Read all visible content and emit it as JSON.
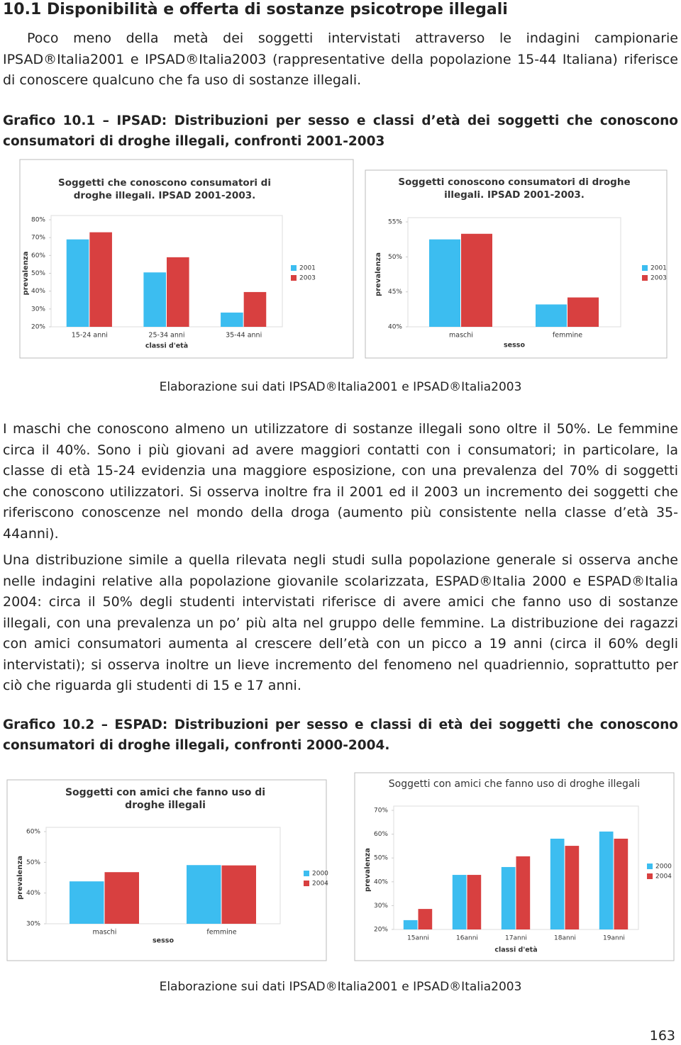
{
  "section_title": "10.1 Disponibilità e offerta di sostanze psicotrope illegali",
  "intro": "Poco meno della metà dei soggetti intervistati attraverso le indagini campionarie IPSAD®Italia2001 e IPSAD®Italia2003 (rappresentative della popolazione 15-44 Italiana) riferisce di conoscere qualcuno che fa uso di sostanze illegali.",
  "figure1_caption": "Grafico 10.1 – IPSAD: Distribuzioni per sesso e classi d’età dei soggetti che conoscono consumatori di droghe illegali, confronti 2001-2003",
  "figure1_source": "Elaborazione sui dati IPSAD®Italia2001 e IPSAD®Italia2003",
  "paragraphs": [
    "I maschi che conoscono almeno un utilizzatore di sostanze illegali sono oltre il 50%. Le femmine circa il 40%. Sono i più giovani ad avere maggiori contatti con i consumatori; in particolare, la classe di età 15-24 evidenzia una maggiore esposizione, con una prevalenza del 70% di soggetti che conoscono utilizzatori. Si osserva inoltre fra il 2001 ed il 2003 un incremento dei soggetti che riferiscono conoscenze nel mondo della droga (aumento più consistente nella classe d’età 35-44anni).",
    "Una distribuzione simile a quella rilevata negli studi sulla popolazione generale si osserva anche nelle indagini relative alla popolazione giovanile scolarizzata, ESPAD®Italia 2000 e ESPAD®Italia 2004: circa il 50% degli studenti intervistati riferisce di avere amici che fanno uso di sostanze illegali, con una prevalenza un po’ più alta nel gruppo delle femmine. La distribuzione dei ragazzi con amici consumatori aumenta al crescere dell’età con un picco a 19 anni (circa il 60% degli intervistati); si osserva inoltre un lieve incremento del fenomeno nel quadriennio, soprattutto per ciò che riguarda gli studenti di 15 e 17 anni."
  ],
  "figure2_caption": "Grafico 10.2 – ESPAD: Distribuzioni per sesso e classi di età dei soggetti che conoscono consumatori di droghe illegali, confronti 2000-2004.",
  "figure2_source": "Elaborazione sui dati IPSAD®Italia2001 e IPSAD®Italia2003",
  "page_number": "163",
  "chart_data": [
    {
      "type": "bar",
      "title": "Soggetti che conoscono consumatori di droghe illegali. IPSAD 2001-2003.",
      "y_label": "prevalenza",
      "x_label": "classi d'età",
      "categories": [
        "15-24 anni",
        "25-34 anni",
        "35-44 anni"
      ],
      "series": [
        {
          "name": "2001",
          "color": "#3cbdf0",
          "values": [
            69,
            50.5,
            28
          ]
        },
        {
          "name": "2003",
          "color": "#d84040",
          "values": [
            73,
            59,
            39.5
          ]
        }
      ],
      "ylim": [
        20,
        80
      ],
      "yticks": [
        {
          "value": 20,
          "label": "20%"
        },
        {
          "value": 30,
          "label": "30%"
        },
        {
          "value": 40,
          "label": "40%"
        },
        {
          "value": 50,
          "label": "50%"
        },
        {
          "value": 60,
          "label": "60%"
        },
        {
          "value": 70,
          "label": "70%"
        },
        {
          "value": 80,
          "label": "80%"
        }
      ]
    },
    {
      "type": "bar",
      "title": "Soggetti conoscono consumatori di droghe illegali. IPSAD 2001-2003.",
      "y_label": "prevalenza",
      "x_label": "sesso",
      "categories": [
        "maschi",
        "femmine"
      ],
      "series": [
        {
          "name": "2001",
          "color": "#3cbdf0",
          "values": [
            52.5,
            43.2
          ]
        },
        {
          "name": "2003",
          "color": "#d84040",
          "values": [
            53.3,
            44.2
          ]
        }
      ],
      "ylim": [
        40,
        55
      ],
      "yticks": [
        {
          "value": 40,
          "label": "40%"
        },
        {
          "value": 45,
          "label": "45%"
        },
        {
          "value": 50,
          "label": "50%"
        },
        {
          "value": 55,
          "label": "55%"
        }
      ]
    },
    {
      "type": "bar",
      "title": "Soggetti con amici che fanno uso di droghe illegali",
      "y_label": "prevalenza",
      "x_label": "sesso",
      "categories": [
        "maschi",
        "femmine"
      ],
      "series": [
        {
          "name": "2000",
          "color": "#3cbdf0",
          "values": [
            43.8,
            49.1
          ]
        },
        {
          "name": "2004",
          "color": "#d84040",
          "values": [
            46.8,
            49
          ]
        }
      ],
      "ylim": [
        30,
        60
      ],
      "yticks": [
        {
          "value": 30,
          "label": "30%"
        },
        {
          "value": 40,
          "label": "40%"
        },
        {
          "value": 50,
          "label": "50%"
        },
        {
          "value": 60,
          "label": "60%"
        }
      ]
    },
    {
      "type": "bar",
      "title": "Soggetti con amici che fanno uso di droghe illegali",
      "y_label": "prevalenza",
      "x_label": "classi d'età",
      "categories": [
        "15anni",
        "16anni",
        "17anni",
        "18anni",
        "19anni"
      ],
      "series": [
        {
          "name": "2000",
          "color": "#3cbdf0",
          "values": [
            23.9,
            42.9,
            46.2,
            58.1,
            61.1
          ]
        },
        {
          "name": "2004",
          "color": "#d84040",
          "values": [
            28.6,
            42.9,
            50.7,
            55.1,
            58.1
          ]
        }
      ],
      "ylim": [
        20,
        70
      ],
      "yticks": [
        {
          "value": 20,
          "label": "20%"
        },
        {
          "value": 30,
          "label": "30%"
        },
        {
          "value": 40,
          "label": "40%"
        },
        {
          "value": 50,
          "label": "50%"
        },
        {
          "value": 60,
          "label": "60%"
        },
        {
          "value": 70,
          "label": "70%"
        }
      ]
    }
  ]
}
